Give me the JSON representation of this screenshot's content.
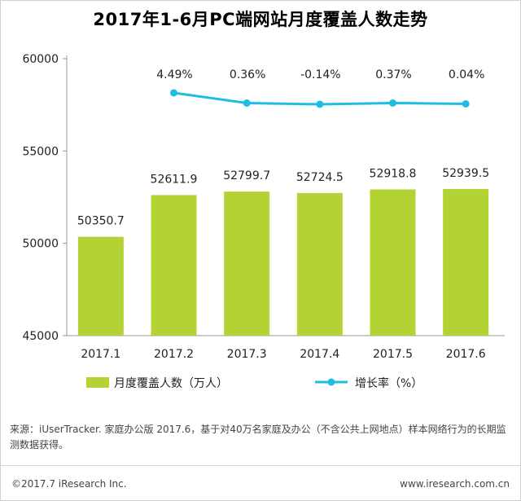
{
  "chart_data": {
    "type": "bar",
    "title": "2017年1-6月PC端网站月度覆盖人数走势",
    "categories": [
      "2017.1",
      "2017.2",
      "2017.3",
      "2017.4",
      "2017.5",
      "2017.6"
    ],
    "ylim": [
      45000,
      60000
    ],
    "yticks": [
      "45000",
      "50000",
      "55000",
      "60000"
    ],
    "series": [
      {
        "name": "月度覆盖人数（万人）",
        "type": "bar",
        "color": "#b3d334",
        "values": [
          50350.7,
          52611.9,
          52799.7,
          52724.5,
          52918.8,
          52939.5
        ],
        "labels": [
          "50350.7",
          "52611.9",
          "52799.7",
          "52724.5",
          "52918.8",
          "52939.5"
        ]
      },
      {
        "name": "增长率（%）",
        "type": "line",
        "color": "#1fbde2",
        "values": [
          null,
          4.49,
          0.36,
          -0.14,
          0.37,
          0.04
        ],
        "labels": [
          "",
          "4.49%",
          "0.36%",
          "-0.14%",
          "0.37%",
          "0.04%"
        ]
      }
    ],
    "legend_position": "bottom"
  },
  "footer": {
    "source": "来源：iUserTracker. 家庭办公版 2017.6，基于对40万名家庭及办公（不含公共上网地点）样本网络行为的长期监测数据获得。",
    "copyright": "©2017.7 iResearch Inc.",
    "website": "www.iresearch.com.cn"
  }
}
